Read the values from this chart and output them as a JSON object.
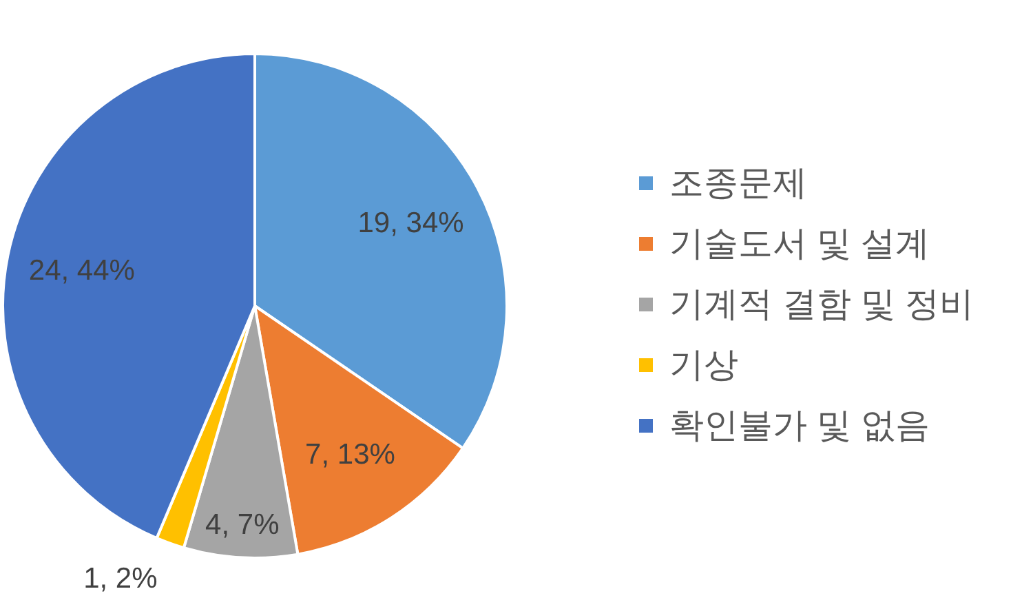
{
  "chart_data": {
    "type": "pie",
    "categories": [
      "조종문제",
      "기술도서 및 설계",
      "기계적 결함 및 정비",
      "기상",
      "확인불가 및 없음"
    ],
    "values": [
      19,
      7,
      4,
      1,
      24
    ],
    "value_labels": [
      "19, 34%",
      "7, 13%",
      "4, 7%",
      "1, 2%",
      "24, 44%"
    ],
    "colors": [
      "#5b9bd5",
      "#ed7d31",
      "#a5a5a5",
      "#ffc000",
      "#4472c4"
    ],
    "legend": "right"
  }
}
